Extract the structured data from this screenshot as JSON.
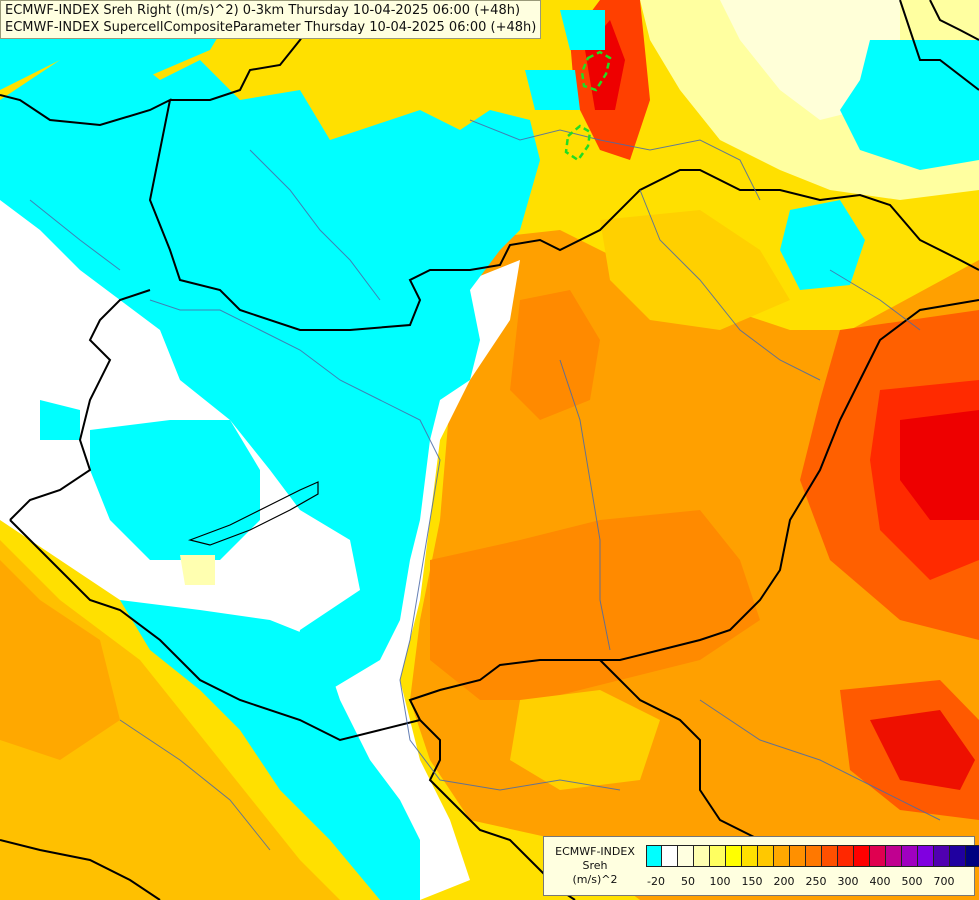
{
  "header": {
    "line1": "ECMWF-INDEX Sreh Right ((m/s)^2) 0-3km Thursday 10-04-2025 06:00 (+48h)",
    "line2": "ECMWF-INDEX SupercellCompositeParameter Thursday 10-04-2025 06:00 (+48h)"
  },
  "legend": {
    "model": "ECMWF-INDEX",
    "variable": "Sreh",
    "unit": "(m/s)^2",
    "colors": [
      "#00ffff",
      "#ffffff",
      "#ffffe0",
      "#ffffb0",
      "#ffff60",
      "#ffff00",
      "#ffe000",
      "#ffc800",
      "#ffa800",
      "#ff9000",
      "#ff7800",
      "#ff5000",
      "#ff2800",
      "#ff0000",
      "#e00050",
      "#c00090",
      "#a000c0",
      "#8000e0",
      "#5000b0",
      "#2000a0",
      "#000080"
    ],
    "ticks": [
      {
        "label": "-20",
        "index": 0.5
      },
      {
        "label": "50",
        "index": 2.5
      },
      {
        "label": "100",
        "index": 4.5
      },
      {
        "label": "150",
        "index": 6.5
      },
      {
        "label": "200",
        "index": 8.5
      },
      {
        "label": "250",
        "index": 10.5
      },
      {
        "label": "300",
        "index": 12.5
      },
      {
        "label": "400",
        "index": 14.5
      },
      {
        "label": "500",
        "index": 16.5
      },
      {
        "label": "700",
        "index": 18.5
      }
    ]
  }
}
